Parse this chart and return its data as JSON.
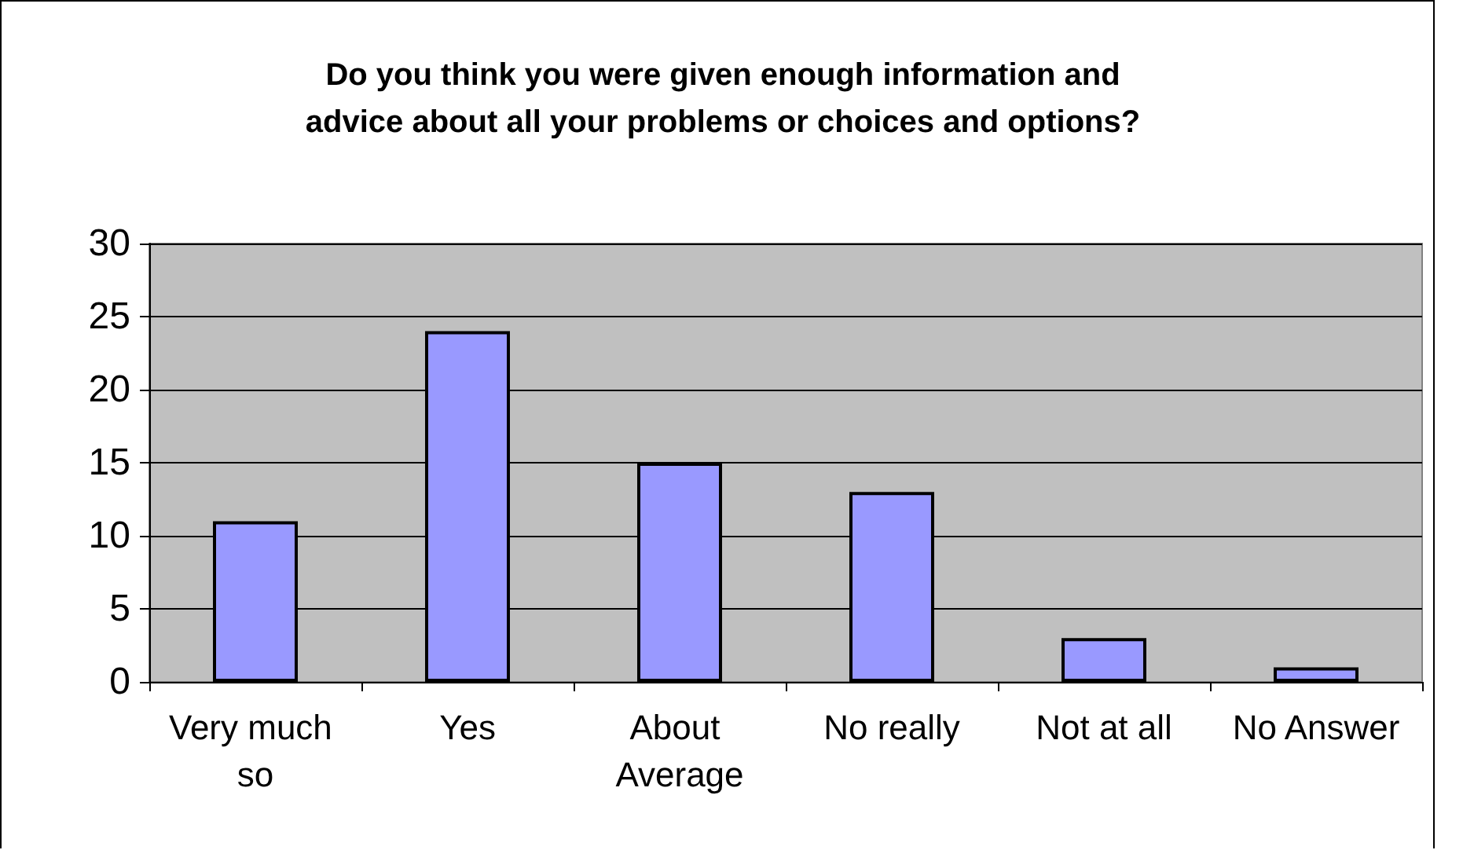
{
  "chart_data": {
    "type": "bar",
    "title": "Do you think you were given enough information and\nadvice about all your problems or choices and options?",
    "categories": [
      "Very much so",
      "Yes",
      "About Average",
      "No really",
      "Not at all",
      "No Answer"
    ],
    "values": [
      11,
      24,
      15,
      13,
      3,
      1
    ],
    "color": "#9999ff",
    "ylim": [
      0,
      30
    ],
    "yticks": [
      0,
      5,
      10,
      15,
      20,
      25,
      30
    ],
    "grid": "y"
  }
}
